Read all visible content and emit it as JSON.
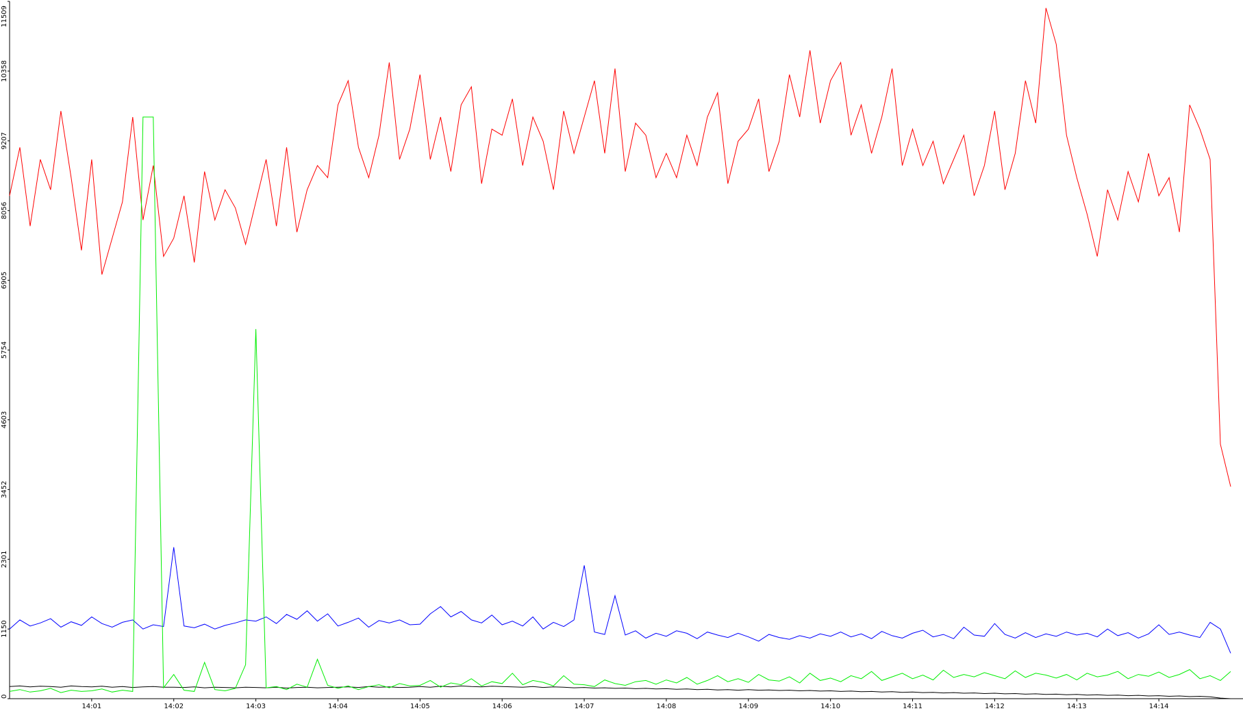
{
  "chart_data": {
    "type": "line",
    "categories": [
      null,
      null,
      null,
      null,
      null,
      null,
      null,
      null,
      "14:01",
      null,
      null,
      null,
      null,
      null,
      null,
      null,
      "14:02",
      null,
      null,
      null,
      null,
      null,
      null,
      null,
      "14:03",
      null,
      null,
      null,
      null,
      null,
      null,
      null,
      "14:04",
      null,
      null,
      null,
      null,
      null,
      null,
      null,
      "14:05",
      null,
      null,
      null,
      null,
      null,
      null,
      null,
      "14:06",
      null,
      null,
      null,
      null,
      null,
      null,
      null,
      "14:07",
      null,
      null,
      null,
      null,
      null,
      null,
      null,
      "14:08",
      null,
      null,
      null,
      null,
      null,
      null,
      null,
      "14:09",
      null,
      null,
      null,
      null,
      null,
      null,
      null,
      "14:10",
      null,
      null,
      null,
      null,
      null,
      null,
      null,
      "14:11",
      null,
      null,
      null,
      null,
      null,
      null,
      null,
      "14:12",
      null,
      null,
      null,
      null,
      null,
      null,
      null,
      "14:13",
      null,
      null,
      null,
      null,
      null,
      null,
      null,
      "14:14",
      null,
      null,
      null,
      null,
      null,
      null,
      null
    ],
    "series": [
      {
        "color": "#ff0000",
        "values": [
          8300,
          9100,
          7800,
          8900,
          8400,
          9700,
          8600,
          7400,
          8900,
          7000,
          7600,
          8200,
          9600,
          7900,
          8800,
          7300,
          7600,
          8300,
          7200,
          8700,
          7900,
          8400,
          8100,
          7500,
          8200,
          8900,
          7800,
          9100,
          7700,
          8400,
          8800,
          8600,
          9800,
          10200,
          9100,
          8600,
          9300,
          10500,
          8900,
          9400,
          10300,
          8900,
          9600,
          8700,
          9800,
          10100,
          8500,
          9400,
          9300,
          9900,
          8800,
          9600,
          9200,
          8400,
          9700,
          9000,
          9600,
          10200,
          9000,
          10400,
          8700,
          9500,
          9300,
          8600,
          9000,
          8600,
          9300,
          8800,
          9600,
          10000,
          8500,
          9200,
          9400,
          9900,
          8700,
          9200,
          10300,
          9600,
          10700,
          9500,
          10200,
          10500,
          9300,
          9800,
          9000,
          9600,
          10400,
          8800,
          9400,
          8800,
          9200,
          8500,
          8900,
          9300,
          8300,
          8800,
          9700,
          8400,
          9000,
          10200,
          9500,
          11400,
          10800,
          9300,
          8600,
          8000,
          7300,
          8400,
          7900,
          8700,
          8200,
          9000,
          8300,
          8600,
          7700,
          9800,
          9400,
          8900,
          4200,
          3500
        ]
      },
      {
        "color": "#0000ff",
        "values": [
          1150,
          1300,
          1200,
          1250,
          1320,
          1180,
          1270,
          1210,
          1350,
          1240,
          1180,
          1260,
          1300,
          1150,
          1220,
          1190,
          2500,
          1200,
          1170,
          1230,
          1150,
          1210,
          1250,
          1300,
          1280,
          1350,
          1240,
          1390,
          1310,
          1450,
          1280,
          1400,
          1200,
          1260,
          1330,
          1180,
          1290,
          1250,
          1300,
          1220,
          1230,
          1400,
          1520,
          1350,
          1440,
          1300,
          1250,
          1380,
          1220,
          1280,
          1200,
          1350,
          1150,
          1260,
          1190,
          1300,
          2200,
          1100,
          1060,
          1700,
          1050,
          1120,
          1000,
          1080,
          1030,
          1120,
          1080,
          990,
          1100,
          1050,
          1010,
          1080,
          1020,
          950,
          1060,
          1010,
          980,
          1040,
          1000,
          1070,
          1030,
          1100,
          1020,
          1070,
          990,
          1110,
          1040,
          1000,
          1080,
          1130,
          1020,
          1060,
          990,
          1180,
          1050,
          1030,
          1240,
          1060,
          1000,
          1090,
          1010,
          1070,
          1030,
          1100,
          1050,
          1080,
          1020,
          1150,
          1040,
          1090,
          1000,
          1070,
          1220,
          1060,
          1100,
          1050,
          1010,
          1260,
          1150,
          750
        ]
      },
      {
        "color": "#000000",
        "values": [
          200,
          210,
          195,
          205,
          200,
          190,
          210,
          200,
          195,
          205,
          190,
          200,
          185,
          195,
          200,
          190,
          190,
          185,
          195,
          180,
          190,
          185,
          180,
          190,
          185,
          180,
          190,
          175,
          185,
          190,
          180,
          185,
          190,
          195,
          185,
          200,
          190,
          195,
          185,
          190,
          200,
          190,
          205,
          195,
          210,
          200,
          195,
          205,
          200,
          195,
          190,
          200,
          185,
          195,
          190,
          180,
          185,
          175,
          180,
          170,
          175,
          165,
          170,
          160,
          165,
          155,
          160,
          150,
          155,
          145,
          150,
          140,
          150,
          140,
          145,
          135,
          140,
          130,
          135,
          125,
          130,
          120,
          125,
          115,
          120,
          110,
          115,
          105,
          110,
          100,
          105,
          95,
          100,
          90,
          95,
          85,
          90,
          80,
          85,
          75,
          80,
          70,
          75,
          65,
          70,
          60,
          65,
          55,
          60,
          50,
          55,
          45,
          50,
          40,
          45,
          35,
          40,
          30,
          10,
          0
        ]
      },
      {
        "color": "#00ee00",
        "values": [
          120,
          150,
          110,
          130,
          170,
          100,
          140,
          120,
          130,
          160,
          110,
          140,
          120,
          9600,
          9600,
          180,
          400,
          140,
          120,
          600,
          150,
          130,
          170,
          560,
          6100,
          180,
          200,
          150,
          240,
          190,
          650,
          220,
          170,
          210,
          150,
          200,
          230,
          180,
          250,
          210,
          220,
          300,
          190,
          260,
          230,
          330,
          210,
          280,
          250,
          420,
          230,
          300,
          270,
          210,
          380,
          240,
          230,
          200,
          310,
          250,
          220,
          280,
          300,
          240,
          310,
          260,
          350,
          240,
          300,
          380,
          280,
          330,
          270,
          400,
          310,
          290,
          360,
          260,
          420,
          300,
          340,
          280,
          380,
          330,
          450,
          300,
          360,
          420,
          330,
          390,
          310,
          470,
          350,
          400,
          360,
          430,
          380,
          330,
          460,
          350,
          420,
          390,
          340,
          400,
          310,
          420,
          360,
          390,
          450,
          330,
          400,
          370,
          440,
          350,
          400,
          480,
          330,
          380,
          300,
          450
        ]
      }
    ],
    "ylim": [
      0,
      11509
    ],
    "yticks": [
      0,
      1150,
      2301,
      3452,
      4603,
      5754,
      6905,
      8056,
      9207,
      10358,
      11509
    ]
  }
}
